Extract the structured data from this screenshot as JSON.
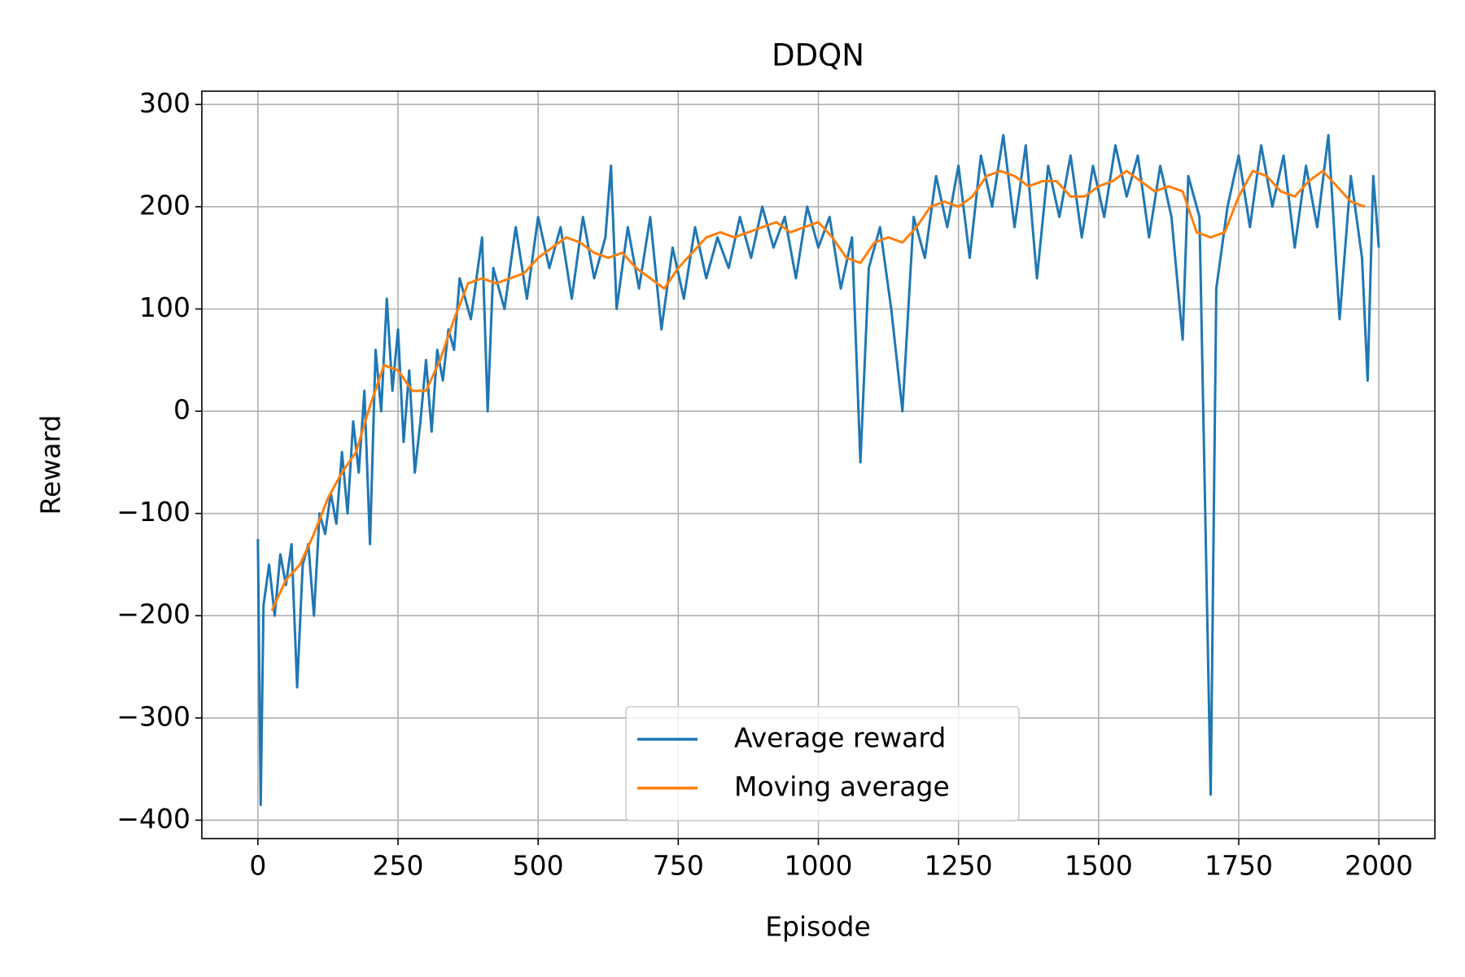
{
  "chart_data": {
    "type": "line",
    "title": "DDQN",
    "x_label": "Episode",
    "y_label": "Reward",
    "xlim": [
      -100,
      2100
    ],
    "ylim": [
      -418,
      313
    ],
    "xticks": [
      0,
      250,
      500,
      750,
      1000,
      1250,
      1500,
      1750,
      2000
    ],
    "yticks": [
      {
        "value": -400,
        "label": "−400"
      },
      {
        "value": -300,
        "label": "−300"
      },
      {
        "value": -200,
        "label": "−200"
      },
      {
        "value": -100,
        "label": "−100"
      },
      0,
      100,
      200,
      300
    ],
    "grid": true,
    "legend": "lower center",
    "series": [
      {
        "name": "Average reward",
        "color": "#1f77b4",
        "x": [
          0,
          5,
          10,
          20,
          30,
          40,
          50,
          60,
          70,
          80,
          90,
          100,
          110,
          120,
          130,
          140,
          150,
          160,
          170,
          180,
          190,
          200,
          210,
          220,
          230,
          240,
          250,
          260,
          270,
          280,
          290,
          300,
          310,
          320,
          330,
          340,
          350,
          360,
          380,
          400,
          410,
          420,
          440,
          460,
          480,
          500,
          520,
          540,
          560,
          580,
          600,
          620,
          630,
          640,
          660,
          680,
          700,
          720,
          740,
          760,
          780,
          800,
          820,
          840,
          860,
          880,
          900,
          920,
          940,
          960,
          980,
          1000,
          1020,
          1040,
          1060,
          1075,
          1090,
          1110,
          1130,
          1150,
          1170,
          1190,
          1210,
          1230,
          1250,
          1270,
          1290,
          1310,
          1330,
          1350,
          1370,
          1390,
          1410,
          1430,
          1450,
          1470,
          1490,
          1510,
          1530,
          1550,
          1570,
          1590,
          1610,
          1630,
          1650,
          1660,
          1680,
          1700,
          1710,
          1730,
          1750,
          1770,
          1790,
          1810,
          1830,
          1850,
          1870,
          1890,
          1910,
          1930,
          1950,
          1970,
          1980,
          1990,
          2000
        ],
        "values": [
          -125,
          -385,
          -190,
          -150,
          -200,
          -140,
          -170,
          -130,
          -270,
          -150,
          -130,
          -200,
          -100,
          -120,
          -80,
          -110,
          -40,
          -100,
          -10,
          -60,
          20,
          -130,
          60,
          0,
          110,
          20,
          80,
          -30,
          40,
          -60,
          -10,
          50,
          -20,
          60,
          30,
          80,
          60,
          130,
          90,
          170,
          0,
          140,
          100,
          180,
          110,
          190,
          140,
          180,
          110,
          190,
          130,
          170,
          240,
          100,
          180,
          120,
          190,
          80,
          160,
          110,
          180,
          130,
          170,
          140,
          190,
          150,
          200,
          160,
          190,
          130,
          200,
          160,
          190,
          120,
          170,
          -50,
          140,
          180,
          100,
          0,
          190,
          150,
          230,
          180,
          240,
          150,
          250,
          200,
          270,
          180,
          260,
          130,
          240,
          190,
          250,
          170,
          240,
          190,
          260,
          210,
          250,
          170,
          240,
          190,
          70,
          230,
          190,
          -375,
          120,
          200,
          250,
          180,
          260,
          200,
          250,
          160,
          240,
          180,
          270,
          90,
          230,
          150,
          30,
          230,
          160
        ]
      },
      {
        "name": "Moving average",
        "color": "#ff7f0e",
        "x": [
          25,
          50,
          75,
          100,
          125,
          150,
          175,
          200,
          225,
          250,
          275,
          300,
          325,
          350,
          375,
          400,
          425,
          450,
          475,
          500,
          525,
          550,
          575,
          600,
          625,
          650,
          675,
          700,
          725,
          750,
          775,
          800,
          825,
          850,
          875,
          900,
          925,
          950,
          975,
          1000,
          1025,
          1050,
          1075,
          1100,
          1125,
          1150,
          1175,
          1200,
          1225,
          1250,
          1275,
          1300,
          1325,
          1350,
          1375,
          1400,
          1425,
          1450,
          1475,
          1500,
          1525,
          1550,
          1575,
          1600,
          1625,
          1650,
          1675,
          1700,
          1725,
          1750,
          1775,
          1800,
          1825,
          1850,
          1875,
          1900,
          1925,
          1950,
          1975
        ],
        "values": [
          -195,
          -165,
          -150,
          -120,
          -85,
          -60,
          -40,
          5,
          45,
          40,
          20,
          20,
          50,
          90,
          125,
          130,
          125,
          130,
          135,
          150,
          160,
          170,
          165,
          155,
          150,
          155,
          140,
          130,
          120,
          140,
          155,
          170,
          175,
          170,
          175,
          180,
          185,
          175,
          180,
          185,
          170,
          150,
          145,
          165,
          170,
          165,
          180,
          200,
          205,
          200,
          210,
          230,
          235,
          230,
          220,
          225,
          225,
          210,
          210,
          220,
          225,
          235,
          225,
          215,
          220,
          215,
          175,
          170,
          175,
          210,
          235,
          230,
          215,
          210,
          225,
          235,
          220,
          205,
          200
        ]
      }
    ]
  }
}
